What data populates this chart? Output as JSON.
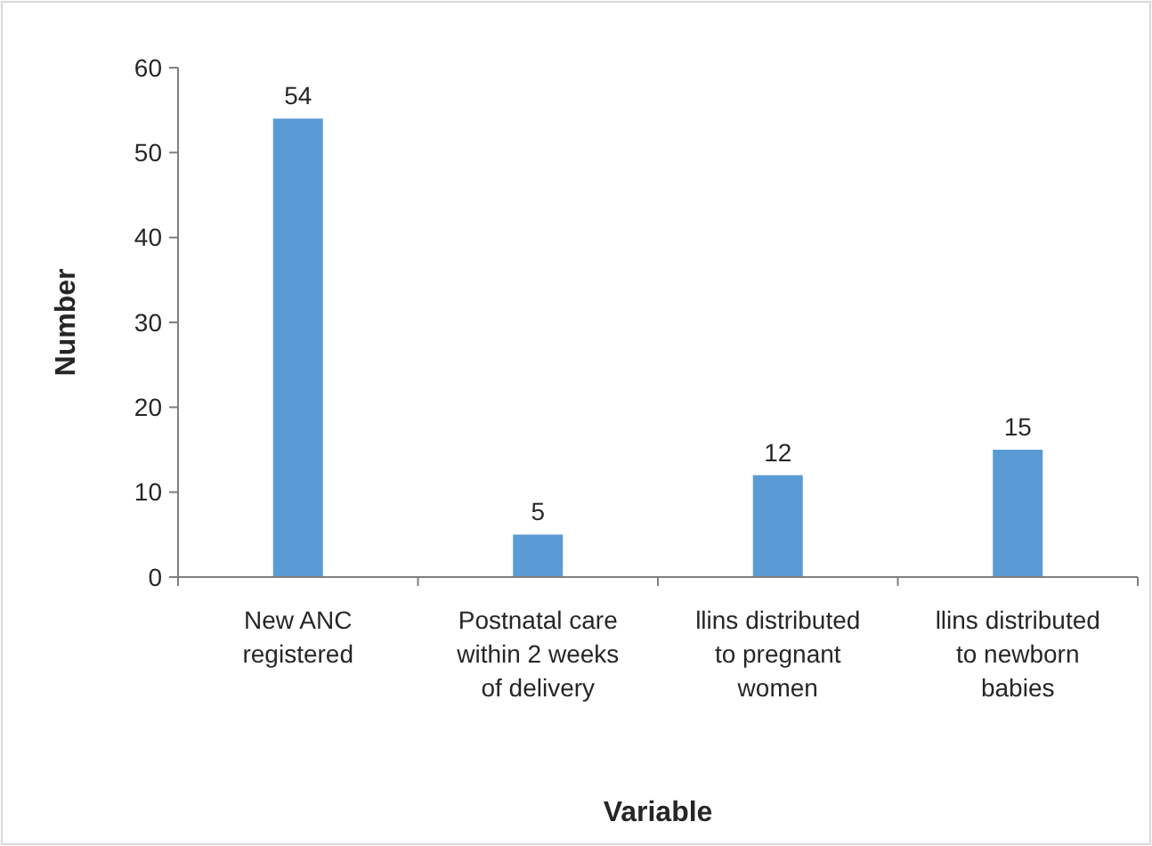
{
  "chart_data": {
    "type": "bar",
    "xlabel": "Variable",
    "ylabel": "Number",
    "categories": [
      "New ANC registered",
      "Postnatal care within 2 weeks of delivery",
      "llins distributed to pregnant women",
      "llins distributed to newborn babies"
    ],
    "values": [
      54,
      5,
      12,
      15
    ],
    "color": "#5b9bd5",
    "ylim": [
      0,
      60
    ],
    "yticks": [
      0,
      10,
      20,
      30,
      40,
      50,
      60
    ],
    "grid": false,
    "data_labels": true
  }
}
